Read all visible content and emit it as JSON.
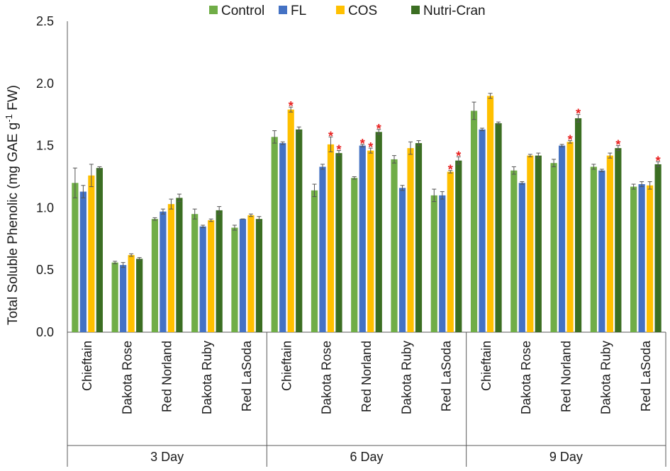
{
  "chart_data": {
    "type": "bar",
    "title": "",
    "ylabel_main": "Total Soluble Phenolic (mg GAE g",
    "ylabel_sup": "-1",
    "ylabel_tail": " FW)",
    "xlabel": "",
    "ylim": [
      0,
      2.5
    ],
    "ytick_labels": [
      "0.0",
      "0.5",
      "1.0",
      "1.5",
      "2.0",
      "2.5"
    ],
    "legend_position": "top-center",
    "colors": {
      "Control": "#70ad47",
      "FL": "#4472c4",
      "COS": "#ffc000",
      "Nutri-Cran": "#3b6e22"
    },
    "error_bar_color": "#555555",
    "significance_color": "#e8201f",
    "significance_marker": "*",
    "categories": [
      "Chieftain",
      "Dakota Rose",
      "Red Norland",
      "Dakota Ruby",
      "Red LaSoda"
    ],
    "groups": [
      {
        "label": "3 Day",
        "categories": [
          "Chieftain",
          "Dakota Rose",
          "Red Norland",
          "Dakota Ruby",
          "Red LaSoda"
        ],
        "series": [
          {
            "name": "Control",
            "values": [
              1.2,
              0.56,
              0.91,
              0.95,
              0.84
            ],
            "errors": [
              0.12,
              0.01,
              0.01,
              0.04,
              0.02
            ],
            "significant": [
              false,
              false,
              false,
              false,
              false
            ]
          },
          {
            "name": "FL",
            "values": [
              1.13,
              0.54,
              0.97,
              0.85,
              0.91
            ],
            "errors": [
              0.05,
              0.02,
              0.02,
              0.01,
              0.0
            ],
            "significant": [
              false,
              false,
              false,
              false,
              false
            ]
          },
          {
            "name": "COS",
            "values": [
              1.26,
              0.62,
              1.03,
              0.9,
              0.94
            ],
            "errors": [
              0.09,
              0.01,
              0.04,
              0.01,
              0.01
            ],
            "significant": [
              false,
              false,
              false,
              false,
              false
            ]
          },
          {
            "name": "Nutri-Cran",
            "values": [
              1.32,
              0.59,
              1.08,
              0.98,
              0.91
            ],
            "errors": [
              0.01,
              0.01,
              0.03,
              0.03,
              0.02
            ],
            "significant": [
              false,
              false,
              false,
              false,
              false
            ]
          }
        ]
      },
      {
        "label": "6 Day",
        "categories": [
          "Chieftain",
          "Dakota Rose",
          "Red Norland",
          "Dakota Ruby",
          "Red LaSoda"
        ],
        "series": [
          {
            "name": "Control",
            "values": [
              1.57,
              1.14,
              1.24,
              1.39,
              1.1
            ],
            "errors": [
              0.05,
              0.05,
              0.01,
              0.03,
              0.05
            ],
            "significant": [
              false,
              false,
              false,
              false,
              false
            ]
          },
          {
            "name": "FL",
            "values": [
              1.52,
              1.33,
              1.5,
              1.16,
              1.1
            ],
            "errors": [
              0.01,
              0.02,
              0.01,
              0.02,
              0.03
            ],
            "significant": [
              false,
              false,
              true,
              false,
              false
            ]
          },
          {
            "name": "COS",
            "values": [
              1.79,
              1.51,
              1.46,
              1.48,
              1.29
            ],
            "errors": [
              0.02,
              0.06,
              0.02,
              0.05,
              0.01
            ],
            "significant": [
              true,
              true,
              true,
              false,
              true
            ]
          },
          {
            "name": "Nutri-Cran",
            "values": [
              1.63,
              1.44,
              1.61,
              1.52,
              1.38
            ],
            "errors": [
              0.02,
              0.02,
              0.02,
              0.02,
              0.03
            ],
            "significant": [
              false,
              true,
              true,
              false,
              true
            ]
          }
        ]
      },
      {
        "label": "9 Day",
        "categories": [
          "Chieftain",
          "Dakota Rose",
          "Red Norland",
          "Dakota Ruby",
          "Red LaSoda"
        ],
        "series": [
          {
            "name": "Control",
            "values": [
              1.78,
              1.3,
              1.36,
              1.33,
              1.17
            ],
            "errors": [
              0.07,
              0.03,
              0.03,
              0.02,
              0.02
            ],
            "significant": [
              false,
              false,
              false,
              false,
              false
            ]
          },
          {
            "name": "FL",
            "values": [
              1.63,
              1.2,
              1.5,
              1.3,
              1.19
            ],
            "errors": [
              0.01,
              0.01,
              0.01,
              0.01,
              0.02
            ],
            "significant": [
              false,
              false,
              false,
              false,
              false
            ]
          },
          {
            "name": "COS",
            "values": [
              1.9,
              1.42,
              1.53,
              1.42,
              1.18
            ],
            "errors": [
              0.02,
              0.01,
              0.01,
              0.02,
              0.03
            ],
            "significant": [
              false,
              false,
              true,
              false,
              false
            ]
          },
          {
            "name": "Nutri-Cran",
            "values": [
              1.68,
              1.42,
              1.72,
              1.48,
              1.35
            ],
            "errors": [
              0.01,
              0.02,
              0.03,
              0.02,
              0.02
            ],
            "significant": [
              false,
              false,
              true,
              true,
              true
            ]
          }
        ]
      }
    ]
  }
}
